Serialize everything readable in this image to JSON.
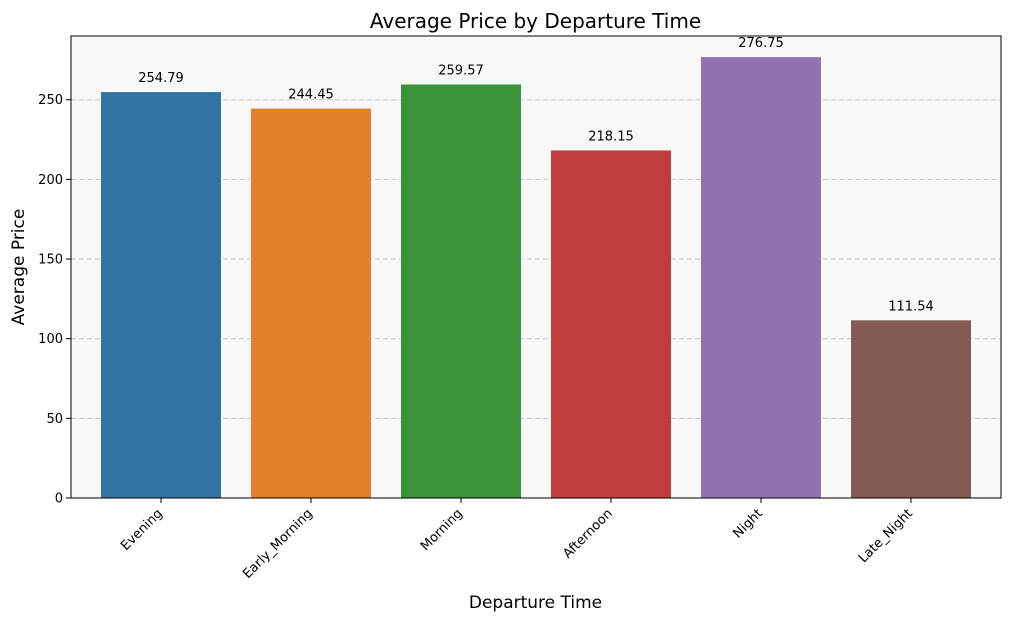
{
  "chart_data": {
    "type": "bar",
    "title": "Average Price by Departure Time",
    "xlabel": "Departure Time",
    "ylabel": "Average Price",
    "categories": [
      "Evening",
      "Early_Morning",
      "Morning",
      "Afternoon",
      "Night",
      "Late_Night"
    ],
    "values": [
      254.79,
      244.45,
      259.57,
      218.15,
      276.75,
      111.54
    ],
    "value_labels": [
      "254.79",
      "244.45",
      "259.57",
      "218.15",
      "276.75",
      "111.54"
    ],
    "colors": [
      "#3274a1",
      "#e1812c",
      "#3a923a",
      "#c03d3e",
      "#9372b2",
      "#845b53"
    ],
    "ylim": [
      0,
      290
    ],
    "yticks": [
      0,
      50,
      100,
      150,
      200,
      250
    ],
    "grid": "y-dashed",
    "plot_background": "#f8f8f8",
    "legend": "none"
  }
}
